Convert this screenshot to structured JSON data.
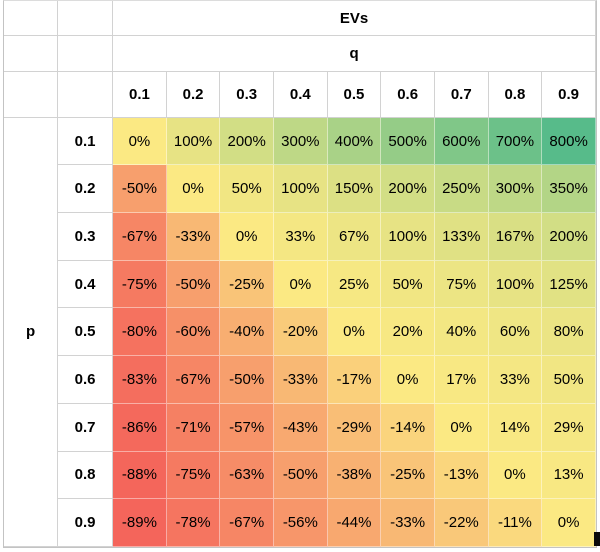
{
  "table": {
    "title": "EVs",
    "col_axis_label": "q",
    "row_axis_label": "p",
    "col_headers": [
      "0.1",
      "0.2",
      "0.3",
      "0.4",
      "0.5",
      "0.6",
      "0.7",
      "0.8",
      "0.9"
    ],
    "row_headers": [
      "0.1",
      "0.2",
      "0.3",
      "0.4",
      "0.5",
      "0.6",
      "0.7",
      "0.8",
      "0.9"
    ]
  },
  "chart_data": {
    "type": "heatmap",
    "title": "EVs",
    "xlabel": "q",
    "ylabel": "p",
    "x": [
      0.1,
      0.2,
      0.3,
      0.4,
      0.5,
      0.6,
      0.7,
      0.8,
      0.9
    ],
    "y": [
      0.1,
      0.2,
      0.3,
      0.4,
      0.5,
      0.6,
      0.7,
      0.8,
      0.9
    ],
    "values_percent": [
      [
        0,
        100,
        200,
        300,
        400,
        500,
        600,
        700,
        800
      ],
      [
        -50,
        0,
        50,
        100,
        150,
        200,
        250,
        300,
        350
      ],
      [
        -67,
        -33,
        0,
        33,
        67,
        100,
        133,
        167,
        200
      ],
      [
        -75,
        -50,
        -25,
        0,
        25,
        50,
        75,
        100,
        125
      ],
      [
        -80,
        -60,
        -40,
        -20,
        0,
        20,
        40,
        60,
        80
      ],
      [
        -83,
        -67,
        -50,
        -33,
        -17,
        0,
        17,
        33,
        50
      ],
      [
        -86,
        -71,
        -57,
        -43,
        -29,
        -14,
        0,
        14,
        29
      ],
      [
        -88,
        -75,
        -63,
        -50,
        -38,
        -25,
        -13,
        0,
        13
      ],
      [
        -89,
        -78,
        -67,
        -56,
        -44,
        -33,
        -22,
        -11,
        0
      ]
    ],
    "value_suffix": "%",
    "colorscale": {
      "min_value": -89,
      "mid_value": 0,
      "max_value": 800,
      "min_color": "#F4655B",
      "mid_color": "#FBE983",
      "max_color": "#57BB8A"
    },
    "grid": true,
    "legend": "none"
  },
  "colors": {
    "gridline": "#d2d2d2",
    "outer_border": "#c3c3c3",
    "text": "#000000",
    "background": "#ffffff",
    "cursor_mark": "#0b0b0b"
  }
}
